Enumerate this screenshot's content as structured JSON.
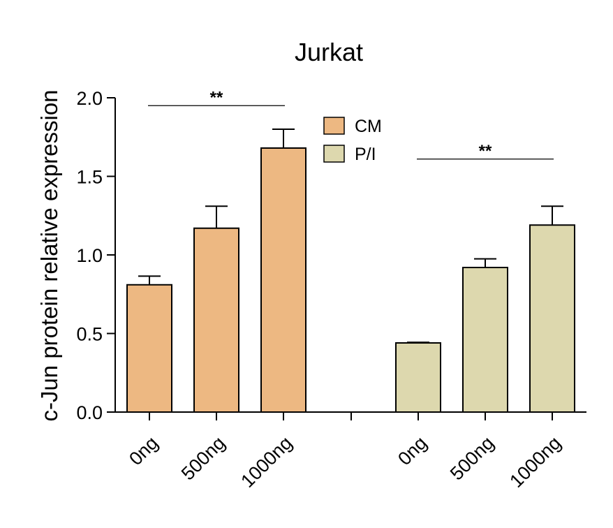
{
  "chart_data": {
    "type": "bar",
    "title": "Jurkat",
    "xlabel": "",
    "ylabel": "c-Jun protein relative expression",
    "ylim": [
      0,
      2.0
    ],
    "yticks": [
      "0.0",
      "0.5",
      "1.0",
      "1.5",
      "2.0"
    ],
    "grid": false,
    "legend_placement": "top-center",
    "series": [
      {
        "name": "CM",
        "color": "#EDB882",
        "categories": [
          "0ng",
          "500ng",
          "1000ng"
        ],
        "values": [
          0.81,
          1.17,
          1.68
        ],
        "errors": [
          0.055,
          0.14,
          0.12
        ]
      },
      {
        "name": "P/I",
        "color": "#DDD8AE",
        "categories": [
          "0ng",
          "500ng",
          "1000ng"
        ],
        "values": [
          0.44,
          0.92,
          1.19
        ],
        "errors": [
          0.004,
          0.055,
          0.12
        ]
      }
    ],
    "annotations": [
      {
        "text": "**",
        "series": 0,
        "from": 0,
        "to": 2,
        "y": 1.95
      },
      {
        "text": "**",
        "series": 1,
        "from": 0,
        "to": 2,
        "y": 1.61
      }
    ]
  }
}
